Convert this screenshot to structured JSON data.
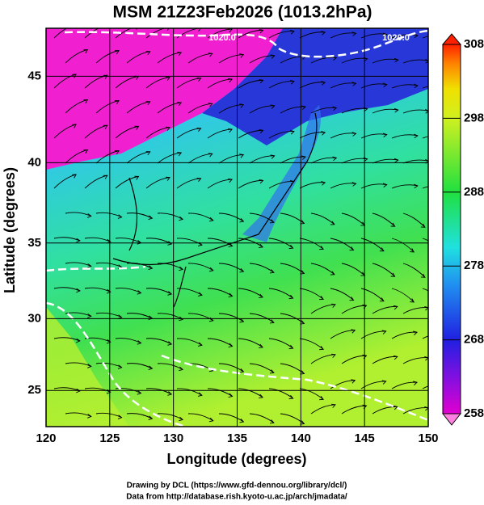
{
  "title": "MSM 21Z23Feb2026 (1013.2hPa)",
  "x_axis": {
    "label": "Longitude (degrees)",
    "lim": [
      120,
      150
    ],
    "ticks": [
      120,
      125,
      130,
      135,
      140,
      145,
      150
    ]
  },
  "y_axis": {
    "label": "Latitude  (degrees)",
    "lim": [
      22.4,
      47.6
    ],
    "projection": "mercator",
    "ticks": [
      25,
      30,
      35,
      40,
      45
    ]
  },
  "colorbar": {
    "lim": [
      258,
      308
    ],
    "ticks": [
      258,
      268,
      278,
      288,
      298,
      308
    ]
  },
  "contour_labels": [
    "1020.0",
    "1020.0"
  ],
  "credits": [
    "Drawing by DCL (https://www.gfd-dennou.org/library/dcl/)",
    "Data from http://database.rish.kyoto-u.ac.jp/arch/jmadata/"
  ]
}
